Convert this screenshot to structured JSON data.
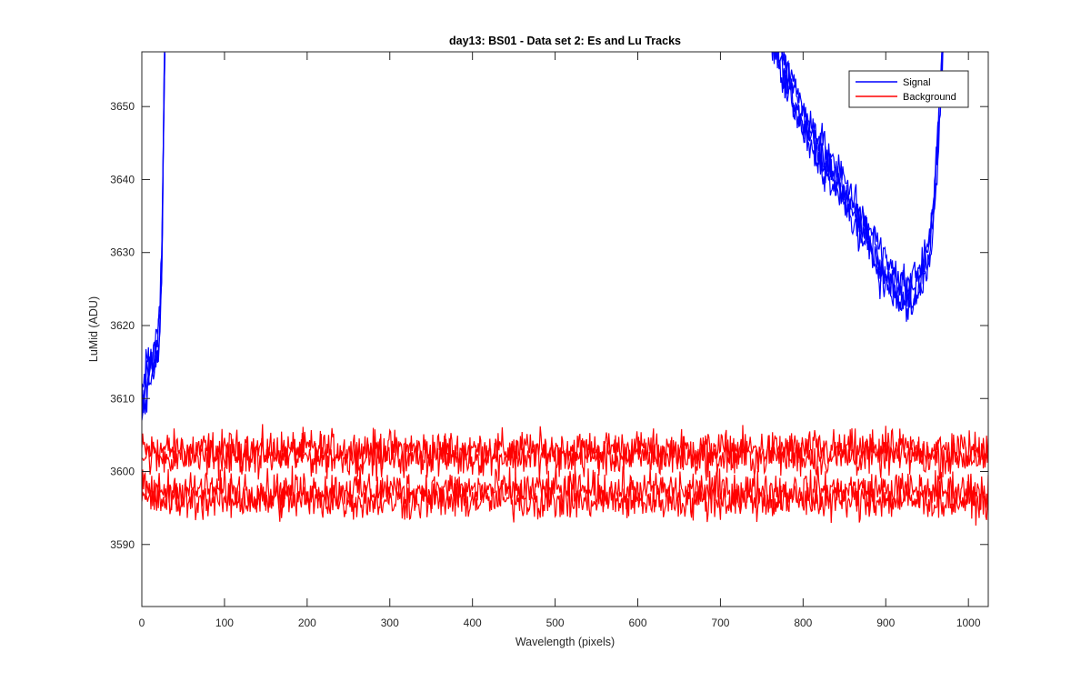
{
  "chart_data": {
    "type": "line",
    "title": "day13: BS01 - Data set 2: Es and Lu Tracks",
    "xlabel": "Wavelength (pixels)",
    "ylabel": "LuMid (ADU)",
    "xlim": [
      0,
      1024
    ],
    "ylim": [
      3581.5,
      3657.5
    ],
    "xticks": [
      0,
      100,
      200,
      300,
      400,
      500,
      600,
      700,
      800,
      900,
      1000
    ],
    "yticks": [
      3590,
      3600,
      3610,
      3620,
      3630,
      3640,
      3650
    ],
    "grid": false,
    "legend_location": "top-right",
    "series": [
      {
        "name": "Signal",
        "color": "#0000ff",
        "segments": [
          {
            "x": [
              0,
              4,
              8,
              12,
              16,
              20,
              22,
              24,
              25,
              26,
              27,
              28
            ],
            "y": [
              3609,
              3612,
              3613,
              3614,
              3616,
              3618,
              3621,
              3628,
              3636,
              3645,
              3652,
              3660
            ]
          },
          {
            "x": [
              762,
              780,
              800,
              820,
              840,
              860,
              880,
              900,
              915,
              925,
              935,
              945,
              952,
              958,
              962,
              966,
              970
            ],
            "y": [
              3660,
              3654,
              3648,
              3644,
              3640,
              3636,
              3632,
              3627,
              3625,
              3624,
              3625,
              3627,
              3630,
              3636,
              3644,
              3652,
              3660
            ]
          }
        ]
      },
      {
        "name": "Background",
        "color": "#ff0000",
        "levels": [
          3603,
          3602,
          3597.5,
          3596
        ],
        "x": [
          0,
          1024
        ]
      }
    ]
  }
}
